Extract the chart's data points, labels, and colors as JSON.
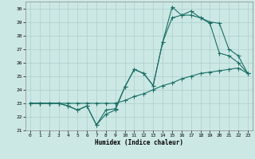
{
  "xlabel": "Humidex (Indice chaleur)",
  "bg_color": "#cce8e5",
  "grid_color": "#aacfcc",
  "line_color": "#1a6e65",
  "xlim": [
    -0.5,
    23.5
  ],
  "ylim": [
    21,
    30.5
  ],
  "xticks": [
    0,
    1,
    2,
    3,
    4,
    5,
    6,
    7,
    8,
    9,
    10,
    11,
    12,
    13,
    14,
    15,
    16,
    17,
    18,
    19,
    20,
    21,
    22,
    23
  ],
  "yticks": [
    21,
    22,
    23,
    24,
    25,
    26,
    27,
    28,
    29,
    30
  ],
  "line1_x": [
    0,
    1,
    2,
    3,
    4,
    5,
    6,
    7,
    8,
    9,
    10,
    11,
    12,
    13,
    14,
    15,
    16,
    17,
    18,
    19,
    20,
    21,
    22,
    23
  ],
  "line1_y": [
    23.0,
    23.0,
    23.0,
    23.0,
    23.0,
    23.0,
    23.0,
    23.0,
    23.0,
    23.0,
    23.2,
    23.5,
    23.7,
    24.0,
    24.3,
    24.5,
    24.8,
    25.0,
    25.2,
    25.3,
    25.4,
    25.5,
    25.6,
    25.2
  ],
  "line2_x": [
    0,
    1,
    2,
    3,
    4,
    5,
    6,
    7,
    8,
    9,
    10,
    11,
    12,
    13,
    14,
    15,
    16,
    17,
    18,
    19,
    20,
    21,
    22,
    23
  ],
  "line2_y": [
    23.0,
    23.0,
    23.0,
    23.0,
    22.8,
    22.5,
    22.8,
    21.4,
    22.5,
    22.6,
    24.2,
    25.5,
    25.2,
    24.3,
    27.5,
    29.3,
    29.5,
    29.5,
    29.3,
    28.9,
    26.7,
    26.5,
    26.0,
    25.2
  ],
  "line3_x": [
    0,
    1,
    2,
    3,
    4,
    5,
    6,
    7,
    8,
    9,
    10,
    11,
    12,
    13,
    14,
    15,
    16,
    17,
    18,
    19,
    20,
    21,
    22,
    23
  ],
  "line3_y": [
    23.0,
    23.0,
    23.0,
    23.0,
    22.8,
    22.5,
    22.8,
    21.4,
    22.2,
    22.5,
    24.2,
    25.5,
    25.2,
    24.3,
    27.5,
    30.1,
    29.5,
    29.8,
    29.3,
    29.0,
    28.9,
    27.0,
    26.5,
    25.2
  ]
}
